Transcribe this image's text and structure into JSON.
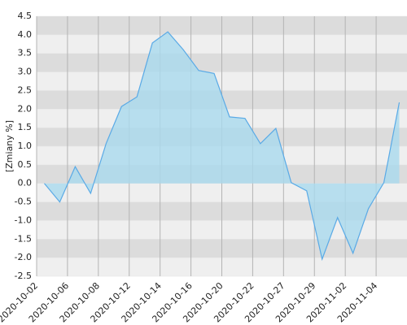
{
  "chart_data": {
    "type": "area",
    "y_label": "[Zmiany %]",
    "categories": [
      "2020-10-02",
      null,
      "2020-10-06",
      null,
      "2020-10-08",
      null,
      "2020-10-12",
      null,
      "2020-10-14",
      null,
      "2020-10-16",
      null,
      "2020-10-20",
      null,
      "2020-10-22",
      null,
      "2020-10-27",
      null,
      "2020-10-29",
      null,
      "2020-11-02",
      null,
      "2020-11-04",
      null
    ],
    "values": [
      0,
      -0.5,
      0.45,
      -0.27,
      1.07,
      2.07,
      2.33,
      3.78,
      4.08,
      3.6,
      3.04,
      2.96,
      1.79,
      1.75,
      1.07,
      1.48,
      0.02,
      -0.2,
      -2.04,
      -0.92,
      -1.88,
      -0.68,
      0.02,
      2.18
    ],
    "color": "#5aaae6",
    "fill": "#a9d9ee",
    "ylim": [
      -2.5,
      4.5
    ],
    "yticks": [
      -2.5,
      {
        "value": -2,
        "label": "-2.0"
      },
      -1.5,
      {
        "value": -1,
        "label": "-1.0"
      },
      -0.5,
      {
        "value": 0,
        "label": "0.0"
      },
      0.5,
      {
        "value": 1,
        "label": "1.0"
      },
      1.5,
      {
        "value": 2,
        "label": "2.0"
      },
      2.5,
      {
        "value": 3,
        "label": "3.0"
      },
      3.5,
      {
        "value": 4,
        "label": "4.0"
      },
      4.5
    ],
    "grid": true
  }
}
